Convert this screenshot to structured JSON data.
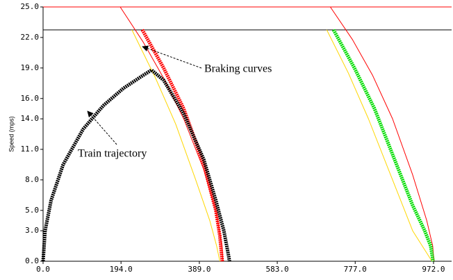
{
  "chart_data": {
    "type": "line",
    "y_label": "Speed (mps)",
    "xlim": [
      0,
      1017
    ],
    "ylim": [
      0,
      25
    ],
    "xticks": [
      {
        "value": 0,
        "label": "0.0"
      },
      {
        "value": 194,
        "label": "194.0"
      },
      {
        "value": 389,
        "label": "389.0"
      },
      {
        "value": 583,
        "label": "583.0"
      },
      {
        "value": 777,
        "label": "777.0"
      },
      {
        "value": 972,
        "label": "972.0"
      }
    ],
    "yticks": [
      {
        "value": 0,
        "label": "0.0"
      },
      {
        "value": 3,
        "label": "3.0"
      },
      {
        "value": 5,
        "label": "5.0"
      },
      {
        "value": 8,
        "label": "8.0"
      },
      {
        "value": 11,
        "label": "11.0"
      },
      {
        "value": 14,
        "label": "14.0"
      },
      {
        "value": 16,
        "label": "16.0"
      },
      {
        "value": 19,
        "label": "19.0"
      },
      {
        "value": 22,
        "label": "22.0"
      },
      {
        "value": 25,
        "label": "25.0"
      }
    ],
    "hlines": [
      {
        "value": 25,
        "color": "#ff0000"
      },
      {
        "value": 22.75,
        "color": "#000000"
      }
    ],
    "series": [
      {
        "color": "#ffd700",
        "style": "thin",
        "x": [
          221,
          280,
          330,
          380,
          415,
          432,
          440
        ],
        "values": [
          22.75,
          18,
          13.5,
          8,
          4,
          1.5,
          0
        ]
      },
      {
        "color": "#ff0000",
        "style": "thin",
        "x": [
          192,
          250,
          300,
          350,
          400,
          430,
          445,
          448
        ],
        "values": [
          25,
          21.5,
          18,
          14,
          9,
          5,
          1.5,
          0
        ]
      },
      {
        "color": "#ff0000",
        "style": "thick",
        "x": [
          247,
          300,
          350,
          400,
          430,
          440,
          446
        ],
        "values": [
          22.75,
          19,
          15,
          9.5,
          5,
          2.5,
          0
        ]
      },
      {
        "color": "#000000",
        "style": "thick",
        "x": [
          0,
          5,
          20,
          50,
          100,
          150,
          200,
          250,
          270,
          300,
          350,
          400,
          430,
          450,
          462,
          464
        ],
        "values": [
          0,
          3,
          6,
          9.5,
          13,
          15.3,
          17,
          18.3,
          18.8,
          17.8,
          14.5,
          10,
          6,
          3,
          0.5,
          0
        ]
      },
      {
        "color": "#ffd700",
        "style": "thin",
        "x": [
          706,
          760,
          810,
          860,
          900,
          920,
          968
        ],
        "values": [
          22.75,
          18.5,
          14,
          9,
          5,
          3,
          0
        ]
      },
      {
        "color": "#ff0000",
        "style": "thin",
        "x": [
          715,
          770,
          820,
          870,
          920,
          955,
          970,
          973
        ],
        "values": [
          25,
          21.8,
          18.3,
          14,
          8.5,
          4,
          1.5,
          0
        ]
      },
      {
        "color": "#00dd00",
        "style": "thick",
        "x": [
          723,
          775,
          825,
          875,
          920,
          950,
          965,
          971
        ],
        "values": [
          22.75,
          19,
          15,
          10,
          5.5,
          3,
          1.5,
          0
        ]
      }
    ],
    "annotations": [
      {
        "text": "Braking curves"
      },
      {
        "text": "Train trajectory"
      }
    ]
  }
}
